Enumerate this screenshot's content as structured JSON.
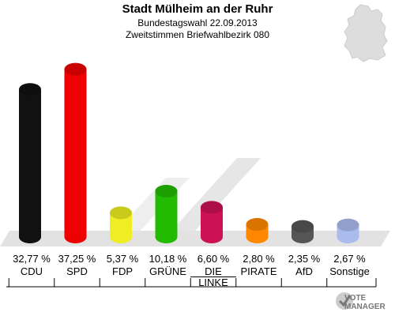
{
  "header": {
    "title": "Stadt Mülheim an der Ruhr",
    "subtitle1": "Bundestagswahl 22.09.2013",
    "subtitle2": "Zweitstimmen Briefwahlbezirk 080"
  },
  "logo": {
    "line1": "VOTE",
    "line2": "MANAGER"
  },
  "chart_data": {
    "type": "bar",
    "title": "Stadt Mülheim an der Ruhr",
    "subtitle": "Bundestagswahl 22.09.2013 · Zweitstimmen Briefwahlbezirk 080",
    "categories": [
      "CDU",
      "SPD",
      "FDP",
      "GRÜNE",
      "DIE LINKE",
      "PIRATE",
      "AfD",
      "Sonstige"
    ],
    "values": [
      32.77,
      37.25,
      5.37,
      10.18,
      6.6,
      2.8,
      2.35,
      2.67
    ],
    "value_labels": [
      "32,77 %",
      "37,25 %",
      "5,37 %",
      "10,18 %",
      "6,60 %",
      "2,80 %",
      "2,35 %",
      "2,67 %"
    ],
    "colors": [
      "#111111",
      "#ee0000",
      "#eeee22",
      "#22bb00",
      "#cc1155",
      "#ff8800",
      "#555555",
      "#aabbee"
    ],
    "ylim": [
      0,
      40
    ],
    "xlabel": "",
    "ylabel": "",
    "grid": false
  }
}
